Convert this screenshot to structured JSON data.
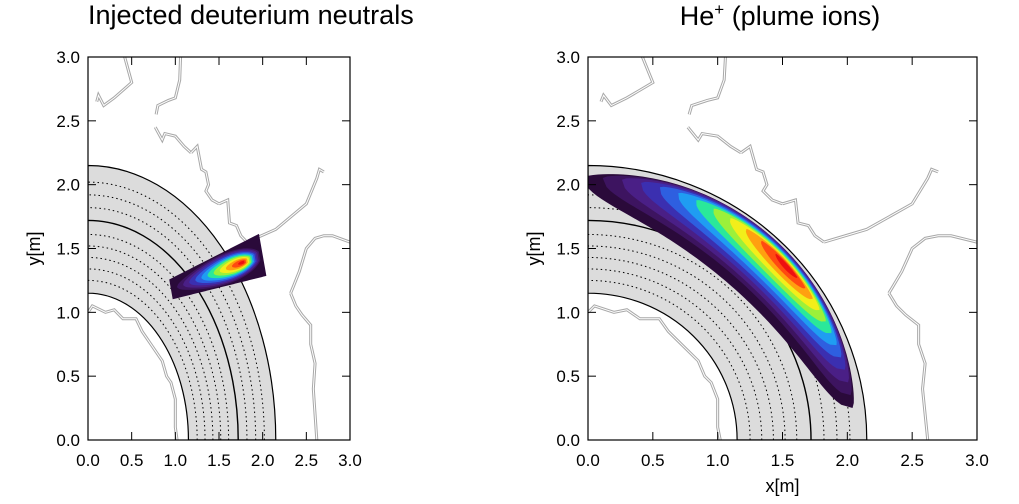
{
  "colors": {
    "plasma_fill": "#dcdcdc",
    "wall": "#a8a8a8",
    "contour_scale": [
      "#2a0a3a",
      "#3d1460",
      "#4a1f86",
      "#3b2fb0",
      "#2e5fe0",
      "#1f9df2",
      "#18d6e6",
      "#2ae89a",
      "#9cf03a",
      "#f2ee1a",
      "#ffa010",
      "#ff4a10",
      "#ee1010"
    ]
  },
  "chart_data": [
    {
      "type": "contour",
      "title": "Injected deuterium neutrals",
      "xlabel": "",
      "ylabel": "y[m]",
      "xlim": [
        0.0,
        3.0
      ],
      "ylim": [
        0.0,
        3.0
      ],
      "xticks": [
        "0.0",
        "0.5",
        "1.0",
        "1.5",
        "2.0",
        "2.5",
        "3.0"
      ],
      "yticks": [
        "0.0",
        "0.5",
        "1.0",
        "1.5",
        "2.0",
        "2.5",
        "3.0"
      ],
      "plasma_radii": {
        "inner": 1.15,
        "separatrix": 1.72,
        "outer": 2.15
      },
      "flux_surfaces_dotted": [
        1.25,
        1.34,
        1.43,
        1.52,
        1.61,
        1.82,
        1.92,
        2.02
      ],
      "plume": {
        "kind": "beam",
        "start": [
          0.95,
          1.18
        ],
        "end": [
          2.0,
          1.45
        ],
        "half_width_start": 0.08,
        "half_width_end": 0.17,
        "peak": [
          1.78,
          1.42
        ],
        "levels": 12
      }
    },
    {
      "type": "contour",
      "title": "He",
      "title_sup": "+",
      "title_rest": " (plume ions)",
      "xlabel": "x[m]",
      "ylabel": "y[m]",
      "xlim": [
        0.0,
        3.0
      ],
      "ylim": [
        0.0,
        3.0
      ],
      "xticks": [
        "0.0",
        "0.5",
        "1.0",
        "1.5",
        "2.0",
        "2.5",
        "3.0"
      ],
      "yticks": [
        "0.0",
        "0.5",
        "1.0",
        "1.5",
        "2.0",
        "2.5",
        "3.0"
      ],
      "plasma_radii": {
        "inner": 1.15,
        "separatrix": 1.72,
        "outer": 2.15
      },
      "flux_surfaces_dotted": [
        1.25,
        1.34,
        1.43,
        1.52,
        1.61,
        1.82,
        1.92,
        2.02
      ],
      "plume": {
        "kind": "arc",
        "theta_range_deg": [
          7,
          91
        ],
        "r_outer": 2.13,
        "peak": [
          1.55,
          1.35
        ],
        "levels": 12
      }
    }
  ]
}
